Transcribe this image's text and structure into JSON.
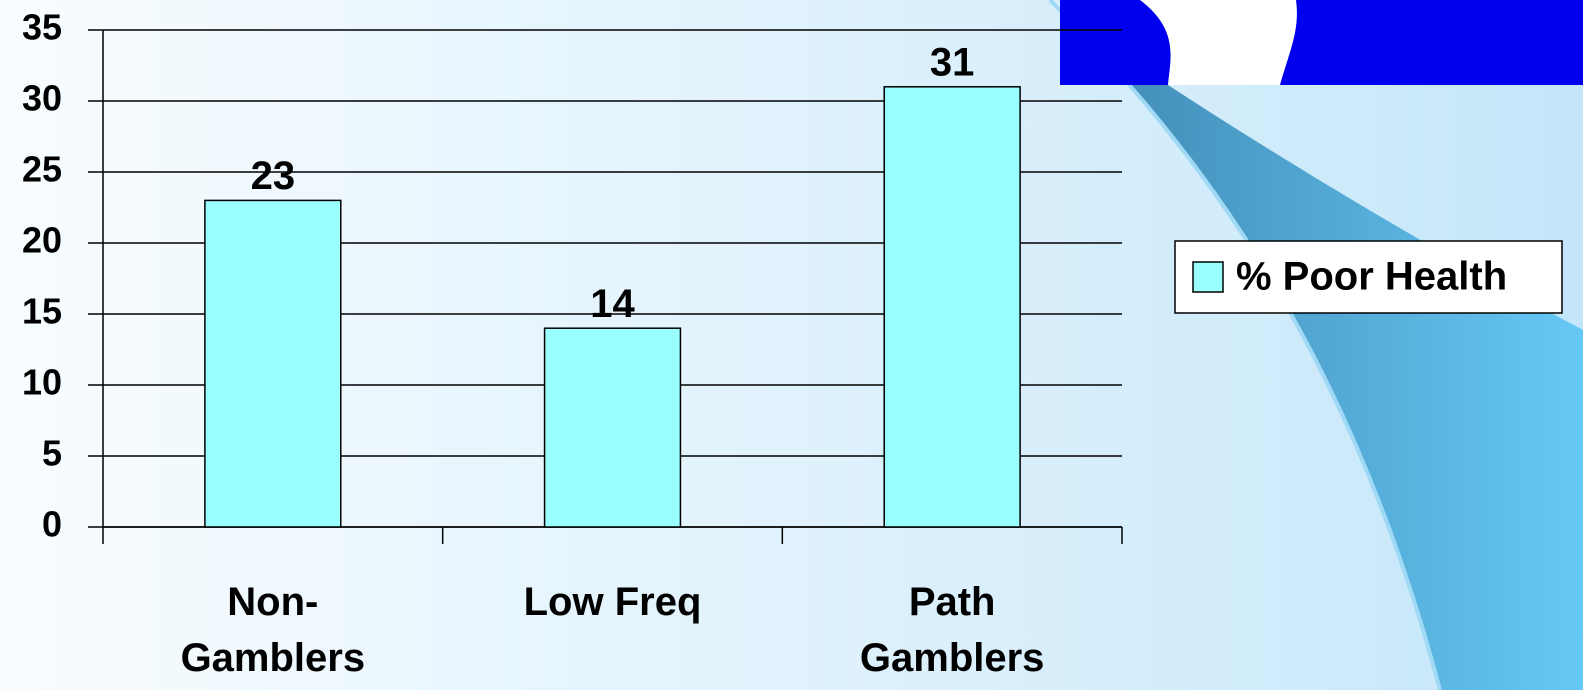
{
  "chart_data": {
    "type": "bar",
    "categories": [
      "Non-Gamblers",
      "Low Freq",
      "Path Gamblers"
    ],
    "series": [
      {
        "name": "% Poor Health",
        "color": "#99ffff",
        "values": [
          23,
          14,
          31
        ]
      }
    ],
    "ylim": [
      0,
      35
    ],
    "yticks": [
      0,
      5,
      10,
      15,
      20,
      25,
      30,
      35
    ],
    "grid": true,
    "legend": "right"
  }
}
